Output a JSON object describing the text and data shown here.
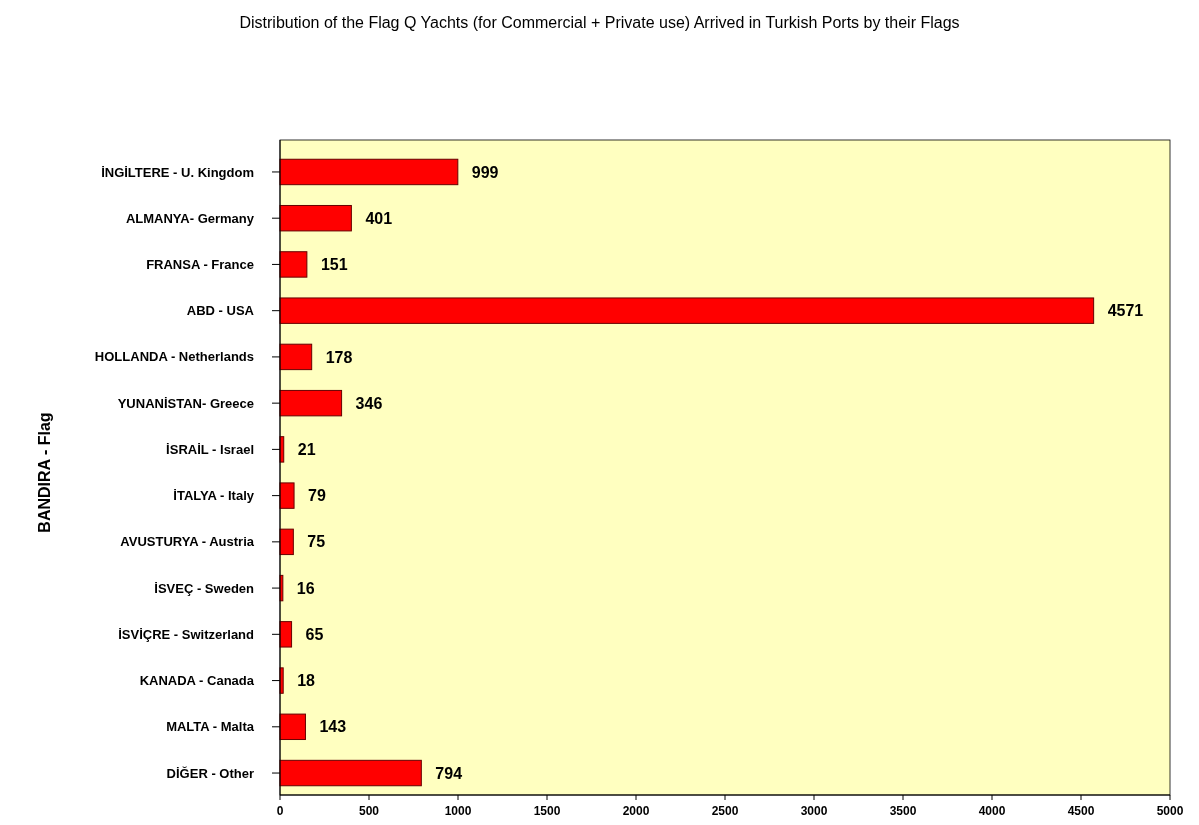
{
  "chart_data": {
    "type": "bar",
    "orientation": "horizontal",
    "title": "Distribution of the Flag Q Yachts (for Commercial + Private use) Arrived in Turkish Ports by their Flags",
    "ylabel": "BANDIRA - Flag",
    "categories": [
      "İNGİLTERE - U. Kingdom",
      "ALMANYA- Germany",
      "FRANSA - France",
      "ABD - USA",
      "HOLLANDA - Netherlands",
      "YUNANİSTAN- Greece",
      "İSRAİL - Israel",
      "İTALYA - Italy",
      "AVUSTURYA - Austria",
      "İSVEÇ - Sweden",
      "İSVİÇRE - Switzerland",
      "KANADA - Canada",
      "MALTA - Malta",
      "DİĞER - Other"
    ],
    "values": [
      999,
      401,
      151,
      4571,
      178,
      346,
      21,
      79,
      75,
      16,
      65,
      18,
      143,
      794
    ],
    "color": "#ff0000",
    "data_labels": true,
    "xlim": [
      0,
      5000
    ],
    "xticks": [
      0,
      500,
      1000,
      1500,
      2000,
      2500,
      3000,
      3500,
      4000,
      4500,
      5000
    ],
    "grid": false
  }
}
